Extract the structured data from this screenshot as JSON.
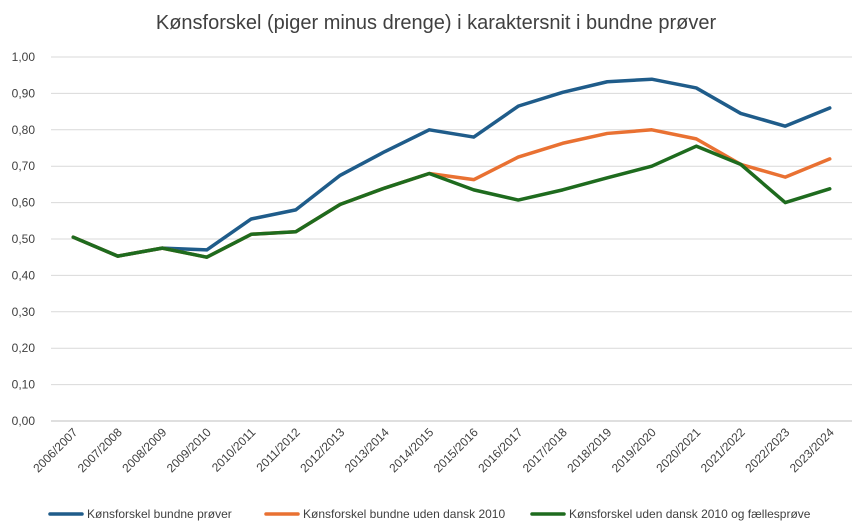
{
  "chart_data": {
    "type": "line",
    "title": "Kønsforskel (piger minus drenge) i karaktersnit i bundne prøver",
    "xlabel": "",
    "ylabel": "",
    "ylim": [
      0,
      1.0
    ],
    "yticks": [
      "0,00",
      "0,10",
      "0,20",
      "0,30",
      "0,40",
      "0,50",
      "0,60",
      "0,70",
      "0,80",
      "0,90",
      "1,00"
    ],
    "grid": true,
    "legend_position": "bottom",
    "categories": [
      "2006/2007",
      "2007/2008",
      "2008/2009",
      "2009/2010",
      "2010/2011",
      "2011/2012",
      "2012/2013",
      "2013/2014",
      "2014/2015",
      "2015/2016",
      "2016/2017",
      "2017/2018",
      "2018/2019",
      "2019/2020",
      "2020/2021",
      "2021/2022",
      "2022/2023",
      "2023/2024"
    ],
    "series": [
      {
        "name": "Kønsforskel bundne prøver",
        "color": "#1f5c8a",
        "values": [
          0.505,
          0.453,
          0.475,
          0.47,
          0.555,
          0.58,
          0.675,
          0.74,
          0.8,
          0.78,
          0.865,
          0.903,
          0.932,
          0.939,
          0.915,
          0.845,
          0.81,
          0.86
        ]
      },
      {
        "name": "Kønsforskel bundne uden dansk 2010",
        "color": "#e97132",
        "values": [
          0.505,
          0.453,
          0.475,
          0.45,
          0.513,
          0.52,
          0.595,
          0.64,
          0.68,
          0.663,
          0.725,
          0.763,
          0.79,
          0.8,
          0.775,
          0.705,
          0.67,
          0.72
        ]
      },
      {
        "name": "Kønsforskel uden dansk 2010 og fællesprøve",
        "color": "#1e6b1e",
        "values": [
          0.505,
          0.453,
          0.475,
          0.45,
          0.513,
          0.52,
          0.595,
          0.64,
          0.68,
          0.635,
          0.607,
          0.635,
          0.668,
          0.7,
          0.755,
          0.705,
          0.6,
          0.638
        ]
      }
    ]
  }
}
